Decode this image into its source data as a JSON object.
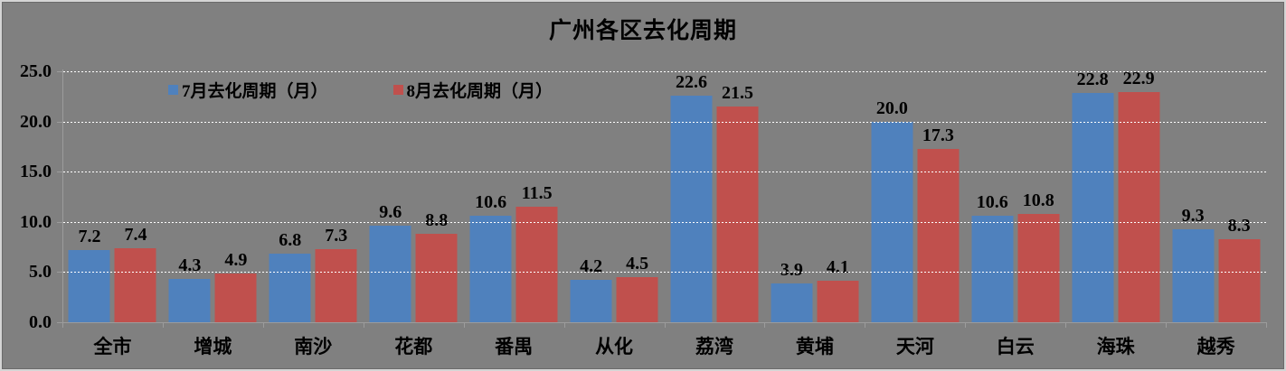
{
  "chart_data": {
    "type": "bar",
    "title": "广州各区去化周期",
    "categories": [
      "全市",
      "增城",
      "南沙",
      "花都",
      "番禺",
      "从化",
      "荔湾",
      "黄埔",
      "天河",
      "白云",
      "海珠",
      "越秀"
    ],
    "series": [
      {
        "name": "7月去化周期（月）",
        "color": "#4F81BD",
        "values": [
          7.2,
          4.3,
          6.8,
          9.6,
          10.6,
          4.2,
          22.6,
          3.9,
          20.0,
          10.6,
          22.8,
          9.3
        ]
      },
      {
        "name": "8月去化周期（月）",
        "color": "#C0504D",
        "values": [
          7.4,
          4.9,
          7.3,
          8.8,
          11.5,
          4.5,
          21.5,
          4.1,
          17.3,
          10.8,
          22.9,
          8.3
        ]
      }
    ],
    "value_label_decimals": 1,
    "y_axis": {
      "min": 0,
      "max": 25,
      "interval": 5,
      "tick_labels": [
        "25.0",
        "20.0",
        "15.0",
        "10.0",
        "5.0",
        "0.0"
      ]
    },
    "legend_position": "top-inside-left",
    "grid": "horizontal-dotted-white",
    "colors": {
      "background": "#808080",
      "text": "#000000",
      "axis": "#9c9c9c",
      "gridline": "#ffffff"
    }
  }
}
